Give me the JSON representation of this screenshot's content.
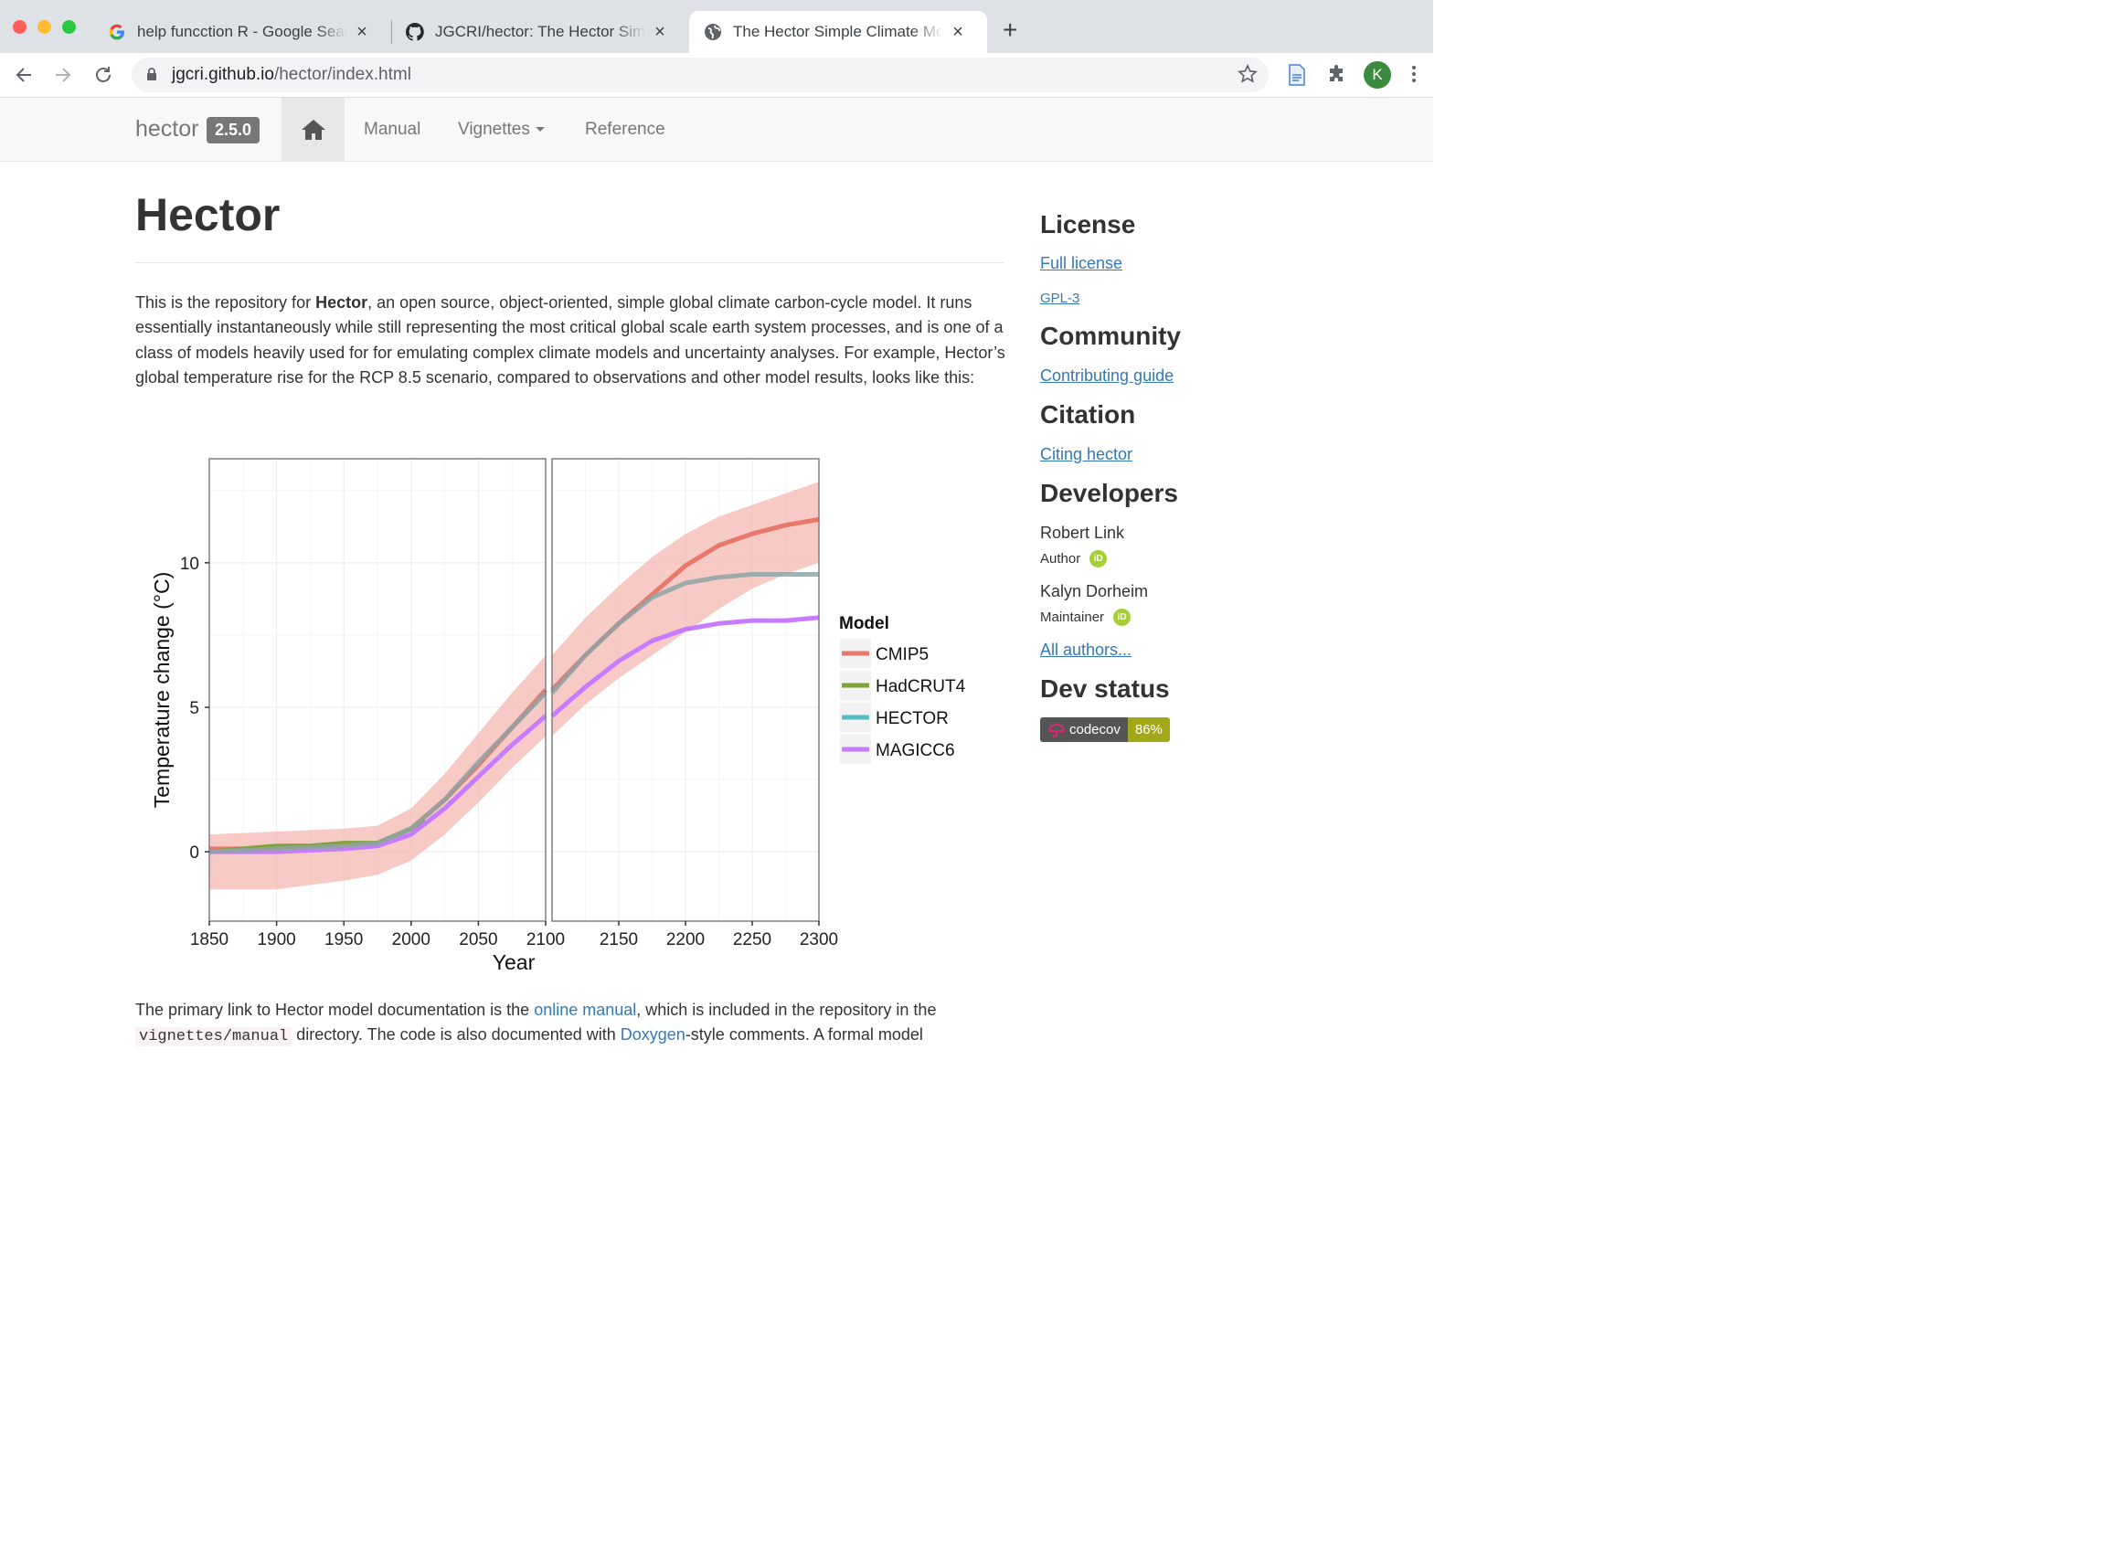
{
  "browser": {
    "tabs": [
      {
        "title": "help funcction R - Google Search",
        "favicon": "google-icon"
      },
      {
        "title": "JGCRI/hector: The Hector Simple Climate Model",
        "favicon": "github-icon"
      },
      {
        "title": "The Hector Simple Climate Model",
        "favicon": "globe-icon"
      }
    ],
    "url_host": "jgcri.github.io",
    "url_path": "/hector/index.html",
    "profile_initial": "K"
  },
  "site": {
    "brand": "hector",
    "version": "2.5.0",
    "nav": {
      "manual": "Manual",
      "vignettes": "Vignettes",
      "reference": "Reference"
    }
  },
  "content": {
    "title": "Hector",
    "intro_before": "This is the repository for ",
    "intro_bold": "Hector",
    "intro_after": ", an open source, object-oriented, simple global climate carbon-cycle model. It runs essentially instantaneously while still representing the most critical global scale earth system processes, and is one of a class of models heavily used for for emulating complex climate models and uncertainty analyses. For example, Hector’s global temperature rise for the RCP 8.5 scenario, compared to observations and other model results, looks like this:",
    "p2_a": "The primary link to Hector model documentation is the ",
    "p2_link1": "online manual",
    "p2_b": ", which is included in the repository in the ",
    "p2_code": "vignettes/manual",
    "p2_c": " directory. The code is also documented with ",
    "p2_link2": "Doxygen",
    "p2_d": "-style comments. A formal model"
  },
  "sidebar": {
    "license_heading": "License",
    "full_license": "Full license",
    "license_name": "GPL-3",
    "community_heading": "Community",
    "contributing": "Contributing guide",
    "citation_heading": "Citation",
    "citing": "Citing hector",
    "developers_heading": "Developers",
    "developers": [
      {
        "name": "Robert Link",
        "role": "Author"
      },
      {
        "name": "Kalyn Dorheim",
        "role": "Maintainer"
      }
    ],
    "orcid_label": "iD",
    "all_authors": "All authors...",
    "dev_status_heading": "Dev status",
    "badge_left": "codecov",
    "badge_right": "86%"
  },
  "chart_data": {
    "type": "line",
    "xlabel": "Year",
    "ylabel": "Temperature change (°C)",
    "xlim": [
      1850,
      2300
    ],
    "ylim": [
      -2.4,
      13.6
    ],
    "xticks": [
      1850,
      1900,
      1950,
      2000,
      2050,
      2100,
      2150,
      2200,
      2250,
      2300
    ],
    "yticks": [
      0,
      5,
      10
    ],
    "panels": [
      [
        1850,
        2100
      ],
      [
        2100,
        2300
      ]
    ],
    "legend_title": "Model",
    "legend_position": "right",
    "series": [
      {
        "name": "CMIP5",
        "color": "#e8776c",
        "x": [
          1850,
          1900,
          1950,
          1975,
          2000,
          2025,
          2050,
          2075,
          2100,
          2125,
          2150,
          2175,
          2200,
          2225,
          2250,
          2275,
          2300
        ],
        "y": [
          0.1,
          0.1,
          0.2,
          0.3,
          0.8,
          1.8,
          3.0,
          4.3,
          5.6,
          6.8,
          7.9,
          8.9,
          9.9,
          10.6,
          11.0,
          11.3,
          11.5
        ]
      },
      {
        "name": "HadCRUT4",
        "color": "#7ea336",
        "x": [
          1850,
          1875,
          1900,
          1925,
          1950,
          1975,
          2000,
          2010
        ],
        "y": [
          0.0,
          0.1,
          0.2,
          0.2,
          0.3,
          0.3,
          0.8,
          1.1
        ]
      },
      {
        "name": "HECTOR",
        "color": "#56bcc2",
        "x": [
          1850,
          1900,
          1950,
          1975,
          2000,
          2025,
          2050,
          2075,
          2100,
          2125,
          2150,
          2175,
          2200,
          2225,
          2250,
          2275,
          2300
        ],
        "y": [
          0.0,
          0.1,
          0.2,
          0.3,
          0.8,
          1.8,
          3.1,
          4.3,
          5.5,
          6.8,
          7.9,
          8.8,
          9.3,
          9.5,
          9.6,
          9.6,
          9.6
        ]
      },
      {
        "name": "MAGICC6",
        "color": "#c77cff",
        "x": [
          1850,
          1900,
          1950,
          1975,
          2000,
          2025,
          2050,
          2075,
          2100,
          2125,
          2150,
          2175,
          2200,
          2225,
          2250,
          2275,
          2300
        ],
        "y": [
          0.0,
          0.0,
          0.1,
          0.2,
          0.6,
          1.5,
          2.6,
          3.7,
          4.7,
          5.7,
          6.6,
          7.3,
          7.7,
          7.9,
          8.0,
          8.0,
          8.1
        ]
      }
    ],
    "cmip5_range": {
      "x": [
        1850,
        1900,
        1950,
        1975,
        2000,
        2025,
        2050,
        2075,
        2100,
        2125,
        2150,
        2175,
        2200,
        2225,
        2250,
        2275,
        2300
      ],
      "lo": [
        -1.3,
        -1.3,
        -1.0,
        -0.8,
        -0.3,
        0.6,
        1.7,
        2.9,
        4.0,
        5.1,
        6.0,
        6.8,
        7.6,
        8.4,
        9.1,
        9.6,
        10.0
      ],
      "hi": [
        0.6,
        0.7,
        0.8,
        0.9,
        1.5,
        2.7,
        4.1,
        5.5,
        6.8,
        8.1,
        9.2,
        10.2,
        11.0,
        11.6,
        12.0,
        12.4,
        12.8
      ]
    }
  }
}
